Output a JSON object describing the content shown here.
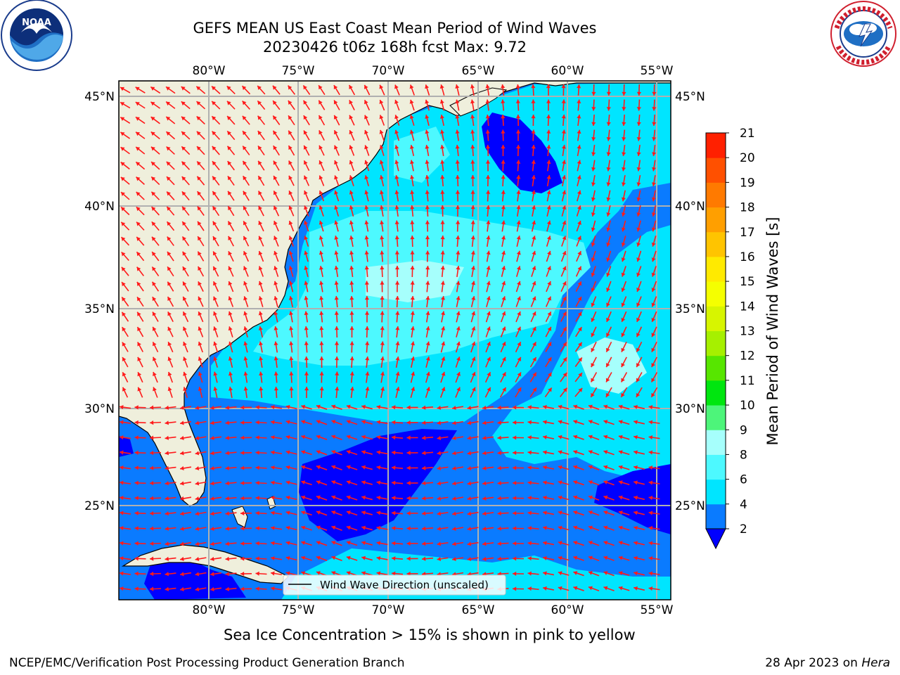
{
  "header": {
    "title": "GEFS MEAN US East Coast Mean Period of Wind Waves",
    "subtitle": "20230426 t06z 168h fcst   Max: 9.72"
  },
  "logos": {
    "left": {
      "text": "NOAA",
      "ring": "NATIONAL OCEANIC AND ATMOSPHERIC ADMINISTRATION · U.S. DEPARTMENT OF COMMERCE"
    },
    "right": {
      "ring": "NATIONAL WEATHER SERVICE"
    }
  },
  "map": {
    "lon_labels": [
      "80°W",
      "75°W",
      "70°W",
      "65°W",
      "60°W",
      "55°W"
    ],
    "lat_labels": [
      "45°N",
      "40°N",
      "35°N",
      "30°N",
      "25°N"
    ],
    "legend_label": "Wind Wave Direction (unscaled)",
    "colors": {
      "land": "#efefdc",
      "arrow": "#ff1a1a",
      "grid": "#b0b0b0"
    }
  },
  "colorbar": {
    "label": "Mean Period of Wind Waves [s]",
    "ticks": [
      "2",
      "4",
      "6",
      "8",
      "9",
      "10",
      "11",
      "12",
      "13",
      "14",
      "15",
      "16",
      "17",
      "18",
      "19",
      "20",
      "21"
    ],
    "colors": [
      "#0a7bff",
      "#00e5ff",
      "#4df9ff",
      "#a6fffc",
      "#4df57a",
      "#00e60f",
      "#57e600",
      "#a6f000",
      "#d7f500",
      "#f5ff00",
      "#ffea00",
      "#ffc400",
      "#ff9f00",
      "#ff7a00",
      "#ff5000",
      "#ff2000",
      "#ff0000"
    ],
    "under_color": "#0000ff"
  },
  "footer": {
    "note": "Sea Ice Concentration > 15% is shown in pink to yellow",
    "left": "NCEP/EMC/Verification Post Processing Product Generation Branch",
    "right_prefix": "28 Apr 2023 on ",
    "right_host": "Hera"
  }
}
